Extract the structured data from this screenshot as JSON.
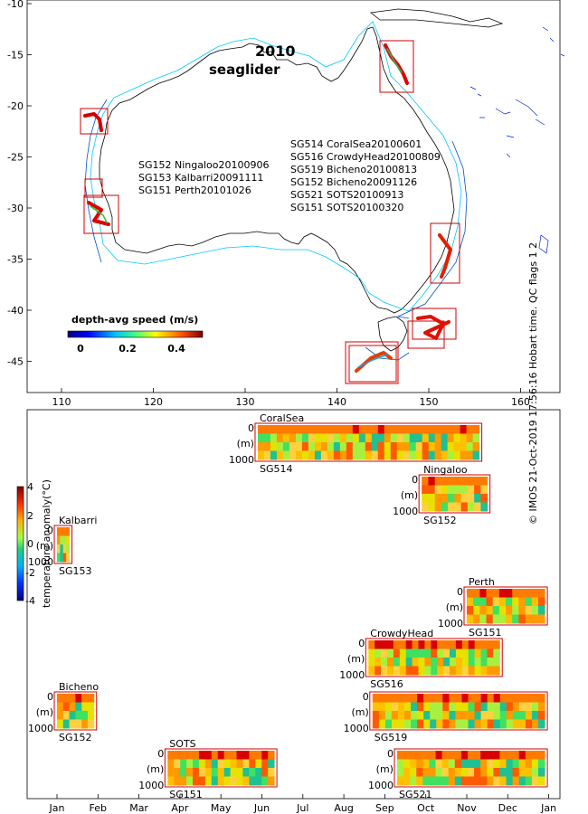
{
  "map": {
    "year": "2010",
    "subtitle": "seaglider",
    "legend_west": [
      "SG152 Ningaloo20100906",
      "SG153 Kalbarri20091111",
      "SG151 Perth20101026"
    ],
    "legend_east": [
      "SG514 CoralSea20100601",
      "SG516 CrowdyHead20100809",
      "SG519 Bicheno20100813",
      "SG152 Bicheno20091126",
      "SG521 SOTS20100913",
      "SG151 SOTS20100320"
    ],
    "colorbar_title": "depth-avg speed (m/s)",
    "colorbar_ticks": [
      "0",
      "0.2",
      "0.4"
    ],
    "x_ticks": [
      "110",
      "120",
      "130",
      "140",
      "150",
      "160"
    ],
    "y_ticks": [
      "-10",
      "-15",
      "-20",
      "-25",
      "-30",
      "-35",
      "-40",
      "-45"
    ]
  },
  "timeline": {
    "months": [
      "Jan",
      "Feb",
      "Mar",
      "Apr",
      "May",
      "Jun",
      "Jul",
      "Aug",
      "Sep",
      "Oct",
      "Nov",
      "Dec",
      "Jan"
    ],
    "colorbar_label": "temperature anomaly(°C)",
    "colorbar_ticks": [
      "4",
      "2",
      "0",
      "-2",
      "-4"
    ],
    "depth_top": "0",
    "depth_unit": "(m)",
    "depth_bottom": "1000",
    "missions": [
      {
        "region": "CoralSea",
        "glider": "SG514",
        "start_month": 4.9,
        "end_month": 10.3
      },
      {
        "region": "Ningaloo",
        "glider": "SG152",
        "start_month": 8.9,
        "end_month": 10.5
      },
      {
        "region": "Kalbarri",
        "glider": "SG153",
        "start_month": 0.0,
        "end_month": 0.3
      },
      {
        "region": "Perth",
        "glider": "SG151",
        "start_month": 10.0,
        "end_month": 11.9
      },
      {
        "region": "CrowdyHead",
        "glider": "SG516",
        "start_month": 7.6,
        "end_month": 10.8
      },
      {
        "region": "Bicheno",
        "glider": "SG152",
        "start_month": 0.0,
        "end_month": 0.9
      },
      {
        "region": "",
        "glider": "SG519",
        "start_month": 7.7,
        "end_month": 11.9
      },
      {
        "region": "SOTS",
        "glider": "SG151",
        "start_month": 2.7,
        "end_month": 5.3
      },
      {
        "region": "",
        "glider": "SG521",
        "start_month": 8.3,
        "end_month": 11.9
      }
    ]
  },
  "credit": "© IMOS 21-Oct-2019 17:56:16 Hobart time. QC flags 1  2"
}
